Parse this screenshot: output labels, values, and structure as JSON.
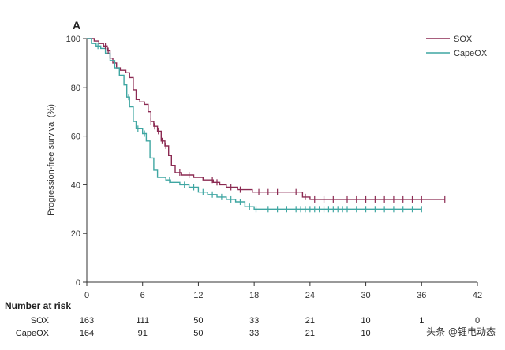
{
  "panel_label": "A",
  "watermark": "头条 @锂电动态",
  "chart_data": {
    "type": "line",
    "title": "",
    "xlabel": "",
    "ylabel": "Progression-free survival (%)",
    "xlim": [
      0,
      42
    ],
    "ylim": [
      0,
      100
    ],
    "x_ticks": [
      "0",
      "6",
      "12",
      "18",
      "24",
      "30",
      "36",
      "42"
    ],
    "y_ticks": [
      "0",
      "20",
      "40",
      "60",
      "80",
      "100"
    ],
    "grid": false,
    "legend_position": "top-right",
    "series": [
      {
        "name": "SOX",
        "color": "#8b2a52",
        "points": [
          [
            0,
            100
          ],
          [
            0.8,
            99
          ],
          [
            1.3,
            98
          ],
          [
            1.8,
            97
          ],
          [
            2.2,
            95
          ],
          [
            2.5,
            92
          ],
          [
            2.8,
            90
          ],
          [
            3.2,
            88
          ],
          [
            3.6,
            87
          ],
          [
            4.2,
            86
          ],
          [
            4.6,
            84
          ],
          [
            5.0,
            79
          ],
          [
            5.3,
            75
          ],
          [
            5.7,
            74
          ],
          [
            6.2,
            73
          ],
          [
            6.6,
            70
          ],
          [
            6.9,
            66
          ],
          [
            7.2,
            64
          ],
          [
            7.6,
            62
          ],
          [
            8.0,
            58
          ],
          [
            8.4,
            56
          ],
          [
            8.8,
            52
          ],
          [
            9.1,
            48
          ],
          [
            9.5,
            45
          ],
          [
            10.2,
            44
          ],
          [
            11.5,
            43
          ],
          [
            12.5,
            42
          ],
          [
            13.6,
            41
          ],
          [
            14.3,
            40
          ],
          [
            15.0,
            39
          ],
          [
            16.2,
            38
          ],
          [
            17.0,
            38
          ],
          [
            17.8,
            37
          ],
          [
            19.0,
            37
          ],
          [
            21.0,
            37
          ],
          [
            22.8,
            37
          ],
          [
            23.2,
            35
          ],
          [
            24.0,
            34
          ],
          [
            27.0,
            34
          ],
          [
            30.0,
            34
          ],
          [
            33.0,
            34
          ],
          [
            36.0,
            34
          ],
          [
            38.5,
            34
          ]
        ],
        "censor_x": [
          2.0,
          2.3,
          6.9,
          7.3,
          7.7,
          8.1,
          8.5,
          10.0,
          11.0,
          13.5,
          14.0,
          15.5,
          16.5,
          18.5,
          19.5,
          20.5,
          22.5,
          23.5,
          24.5,
          25.5,
          26.5,
          28.0,
          29.0,
          30.0,
          31.0,
          32.0,
          33.0,
          34.0,
          35.0,
          36.0,
          38.5
        ],
        "risk": [
          "163",
          "111",
          "50",
          "33",
          "21",
          "10",
          "1",
          "0"
        ]
      },
      {
        "name": "CapeOX",
        "color": "#3fa6a2",
        "points": [
          [
            0,
            100
          ],
          [
            0.5,
            98
          ],
          [
            1.0,
            97
          ],
          [
            1.5,
            96
          ],
          [
            2.0,
            94
          ],
          [
            2.5,
            91
          ],
          [
            3.0,
            88
          ],
          [
            3.5,
            85
          ],
          [
            4.0,
            81
          ],
          [
            4.3,
            76
          ],
          [
            4.6,
            72
          ],
          [
            5.0,
            66
          ],
          [
            5.3,
            63
          ],
          [
            6.0,
            61
          ],
          [
            6.4,
            58
          ],
          [
            6.8,
            51
          ],
          [
            7.2,
            46
          ],
          [
            7.6,
            43
          ],
          [
            8.5,
            42
          ],
          [
            9.0,
            41
          ],
          [
            10.0,
            40
          ],
          [
            11.0,
            39
          ],
          [
            12.0,
            37
          ],
          [
            13.0,
            36
          ],
          [
            14.0,
            35
          ],
          [
            15.0,
            34
          ],
          [
            16.0,
            33
          ],
          [
            17.0,
            31
          ],
          [
            18.0,
            30
          ],
          [
            20.0,
            30
          ],
          [
            24.0,
            30
          ],
          [
            28.0,
            30
          ],
          [
            32.0,
            30
          ],
          [
            36.0,
            30
          ]
        ],
        "censor_x": [
          1.2,
          4.5,
          5.5,
          6.2,
          8.9,
          10.5,
          11.5,
          12.5,
          13.5,
          14.5,
          15.5,
          16.5,
          17.5,
          18.2,
          19.5,
          20.5,
          21.5,
          22.5,
          23.0,
          23.5,
          24.0,
          24.5,
          25.0,
          25.5,
          26.0,
          26.5,
          27.0,
          27.5,
          28.0,
          29.0,
          30.0,
          31.0,
          32.0,
          33.0,
          34.0,
          35.0,
          36.0
        ],
        "risk": [
          "164",
          "91",
          "50",
          "33",
          "21",
          "10",
          "",
          ""
        ]
      }
    ],
    "risk_table": {
      "title": "Number at risk",
      "rows": [
        "SOX",
        "CapeOX"
      ]
    }
  }
}
